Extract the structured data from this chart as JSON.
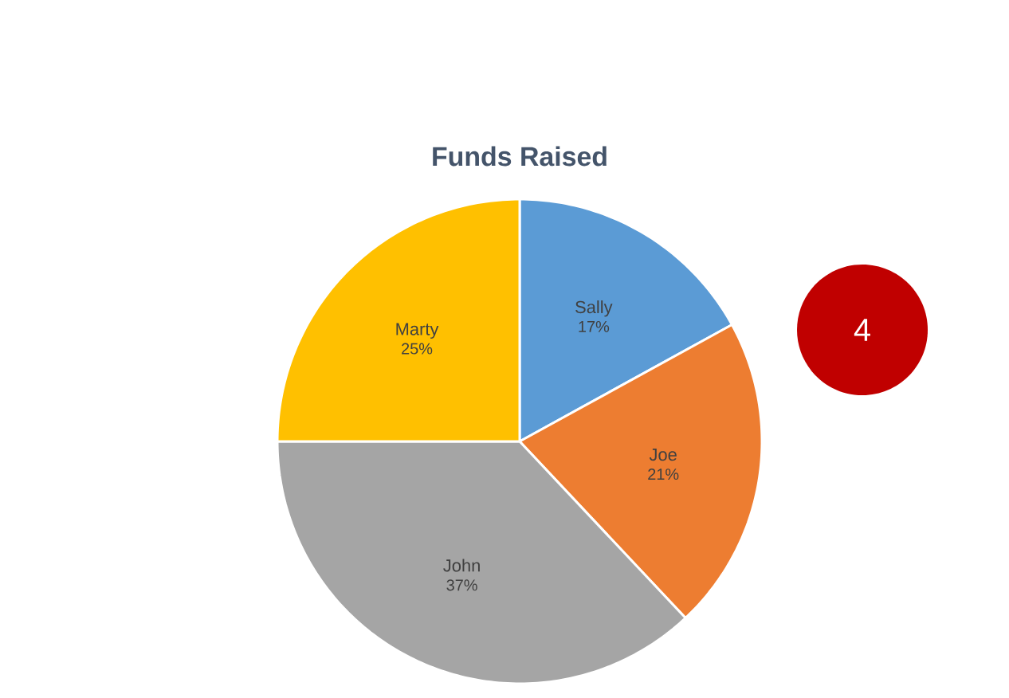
{
  "chart_data": {
    "type": "pie",
    "title": "Funds Raised",
    "categories": [
      "Sally",
      "Joe",
      "John",
      "Marty"
    ],
    "values": [
      17,
      21,
      37,
      25
    ],
    "value_labels": [
      "17%",
      "21%",
      "37%",
      "25%"
    ],
    "colors": [
      "#5b9bd5",
      "#ed7d31",
      "#a5a5a5",
      "#ffc000"
    ],
    "annotations": [
      "4"
    ]
  }
}
